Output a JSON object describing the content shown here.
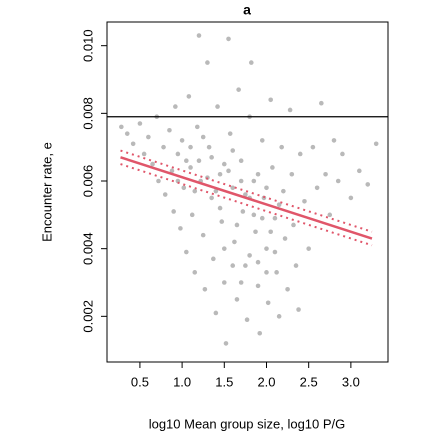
{
  "chart_data": {
    "type": "scatter",
    "title": "a",
    "xlabel": "log10 Mean group size, log10 P/G",
    "ylabel": "Encounter rate, e",
    "color": "#b9b9b9",
    "x": [
      0.28,
      0.35,
      0.42,
      0.5,
      0.55,
      0.6,
      0.65,
      0.7,
      0.72,
      0.78,
      0.8,
      0.85,
      0.88,
      0.9,
      0.92,
      0.95,
      0.98,
      1.0,
      1.02,
      1.05,
      1.08,
      1.1,
      1.12,
      1.15,
      1.18,
      1.2,
      1.22,
      1.25,
      1.27,
      1.3,
      1.32,
      1.35,
      1.37,
      1.4,
      1.42,
      1.45,
      1.47,
      1.5,
      1.52,
      1.55,
      1.57,
      1.6,
      1.62,
      1.65,
      1.67,
      1.7,
      1.72,
      1.75,
      1.77,
      1.8,
      1.82,
      1.85,
      1.87,
      1.9,
      1.92,
      1.95,
      1.97,
      2.0,
      2.02,
      2.05,
      2.07,
      2.1,
      2.12,
      2.15,
      2.18,
      2.2,
      2.22,
      2.25,
      2.28,
      2.3,
      2.32,
      2.35,
      2.38,
      2.4,
      2.45,
      2.5,
      2.55,
      2.6,
      2.65,
      2.7,
      2.75,
      2.8,
      2.85,
      2.9,
      3.0,
      3.1,
      3.2,
      3.3,
      1.1,
      1.2,
      1.3,
      1.4,
      1.5,
      1.6,
      1.7,
      1.8,
      1.9,
      2.0,
      1.25,
      1.45,
      1.65,
      1.85,
      2.05,
      1.35,
      1.55,
      1.75,
      1.95,
      2.15,
      1.15,
      1.05,
      0.95,
      1.6,
      1.8,
      2.0,
      1.7,
      1.9,
      2.1,
      1.5
    ],
    "y": [
      0.0076,
      0.0074,
      0.0071,
      0.0077,
      0.0068,
      0.0073,
      0.0065,
      0.0079,
      0.006,
      0.007,
      0.0056,
      0.0075,
      0.0063,
      0.0051,
      0.0082,
      0.0068,
      0.0046,
      0.0072,
      0.0058,
      0.0039,
      0.0085,
      0.0064,
      0.005,
      0.0033,
      0.0076,
      0.0103,
      0.006,
      0.0044,
      0.0028,
      0.0095,
      0.007,
      0.0055,
      0.0037,
      0.0021,
      0.0082,
      0.0062,
      0.0048,
      0.003,
      0.0012,
      0.0102,
      0.0074,
      0.0058,
      0.0042,
      0.0025,
      0.0087,
      0.0066,
      0.0051,
      0.0035,
      0.0019,
      0.0079,
      0.0095,
      0.006,
      0.0045,
      0.0029,
      0.0015,
      0.0072,
      0.0055,
      0.004,
      0.0024,
      0.0084,
      0.0064,
      0.0049,
      0.0033,
      0.002,
      0.007,
      0.0057,
      0.0043,
      0.0028,
      0.0081,
      0.0062,
      0.0047,
      0.0035,
      0.0022,
      0.0068,
      0.0054,
      0.004,
      0.007,
      0.0058,
      0.0083,
      0.0062,
      0.005,
      0.0072,
      0.006,
      0.0068,
      0.0055,
      0.0063,
      0.0059,
      0.0071,
      0.007,
      0.0066,
      0.0061,
      0.0057,
      0.0065,
      0.0069,
      0.006,
      0.0055,
      0.0062,
      0.0058,
      0.0073,
      0.0052,
      0.0047,
      0.005,
      0.0045,
      0.0067,
      0.0063,
      0.0056,
      0.0049,
      0.0053,
      0.0057,
      0.0066,
      0.006,
      0.0035,
      0.0038,
      0.0033,
      0.003,
      0.0036,
      0.0039,
      0.004
    ],
    "hline": 0.0079,
    "fit": {
      "color": "#e0566a",
      "x": [
        0.27,
        3.25
      ],
      "y": [
        0.0067,
        0.0043
      ],
      "lower": [
        0.0065,
        0.0041
      ],
      "upper": [
        0.0069,
        0.0045
      ]
    },
    "xlim": [
      0.11,
      3.44
    ],
    "ylim": [
      0.00065,
      0.0107
    ],
    "xticks": [
      0.5,
      {
        "value": 1.0,
        "label": "1.0"
      },
      1.5,
      {
        "value": 2.0,
        "label": "2.0"
      },
      2.5,
      {
        "value": 3.0,
        "label": "3.0"
      }
    ],
    "yticks": [
      0.002,
      0.004,
      0.006,
      0.008,
      {
        "value": 0.01,
        "label": "0.010"
      }
    ]
  }
}
